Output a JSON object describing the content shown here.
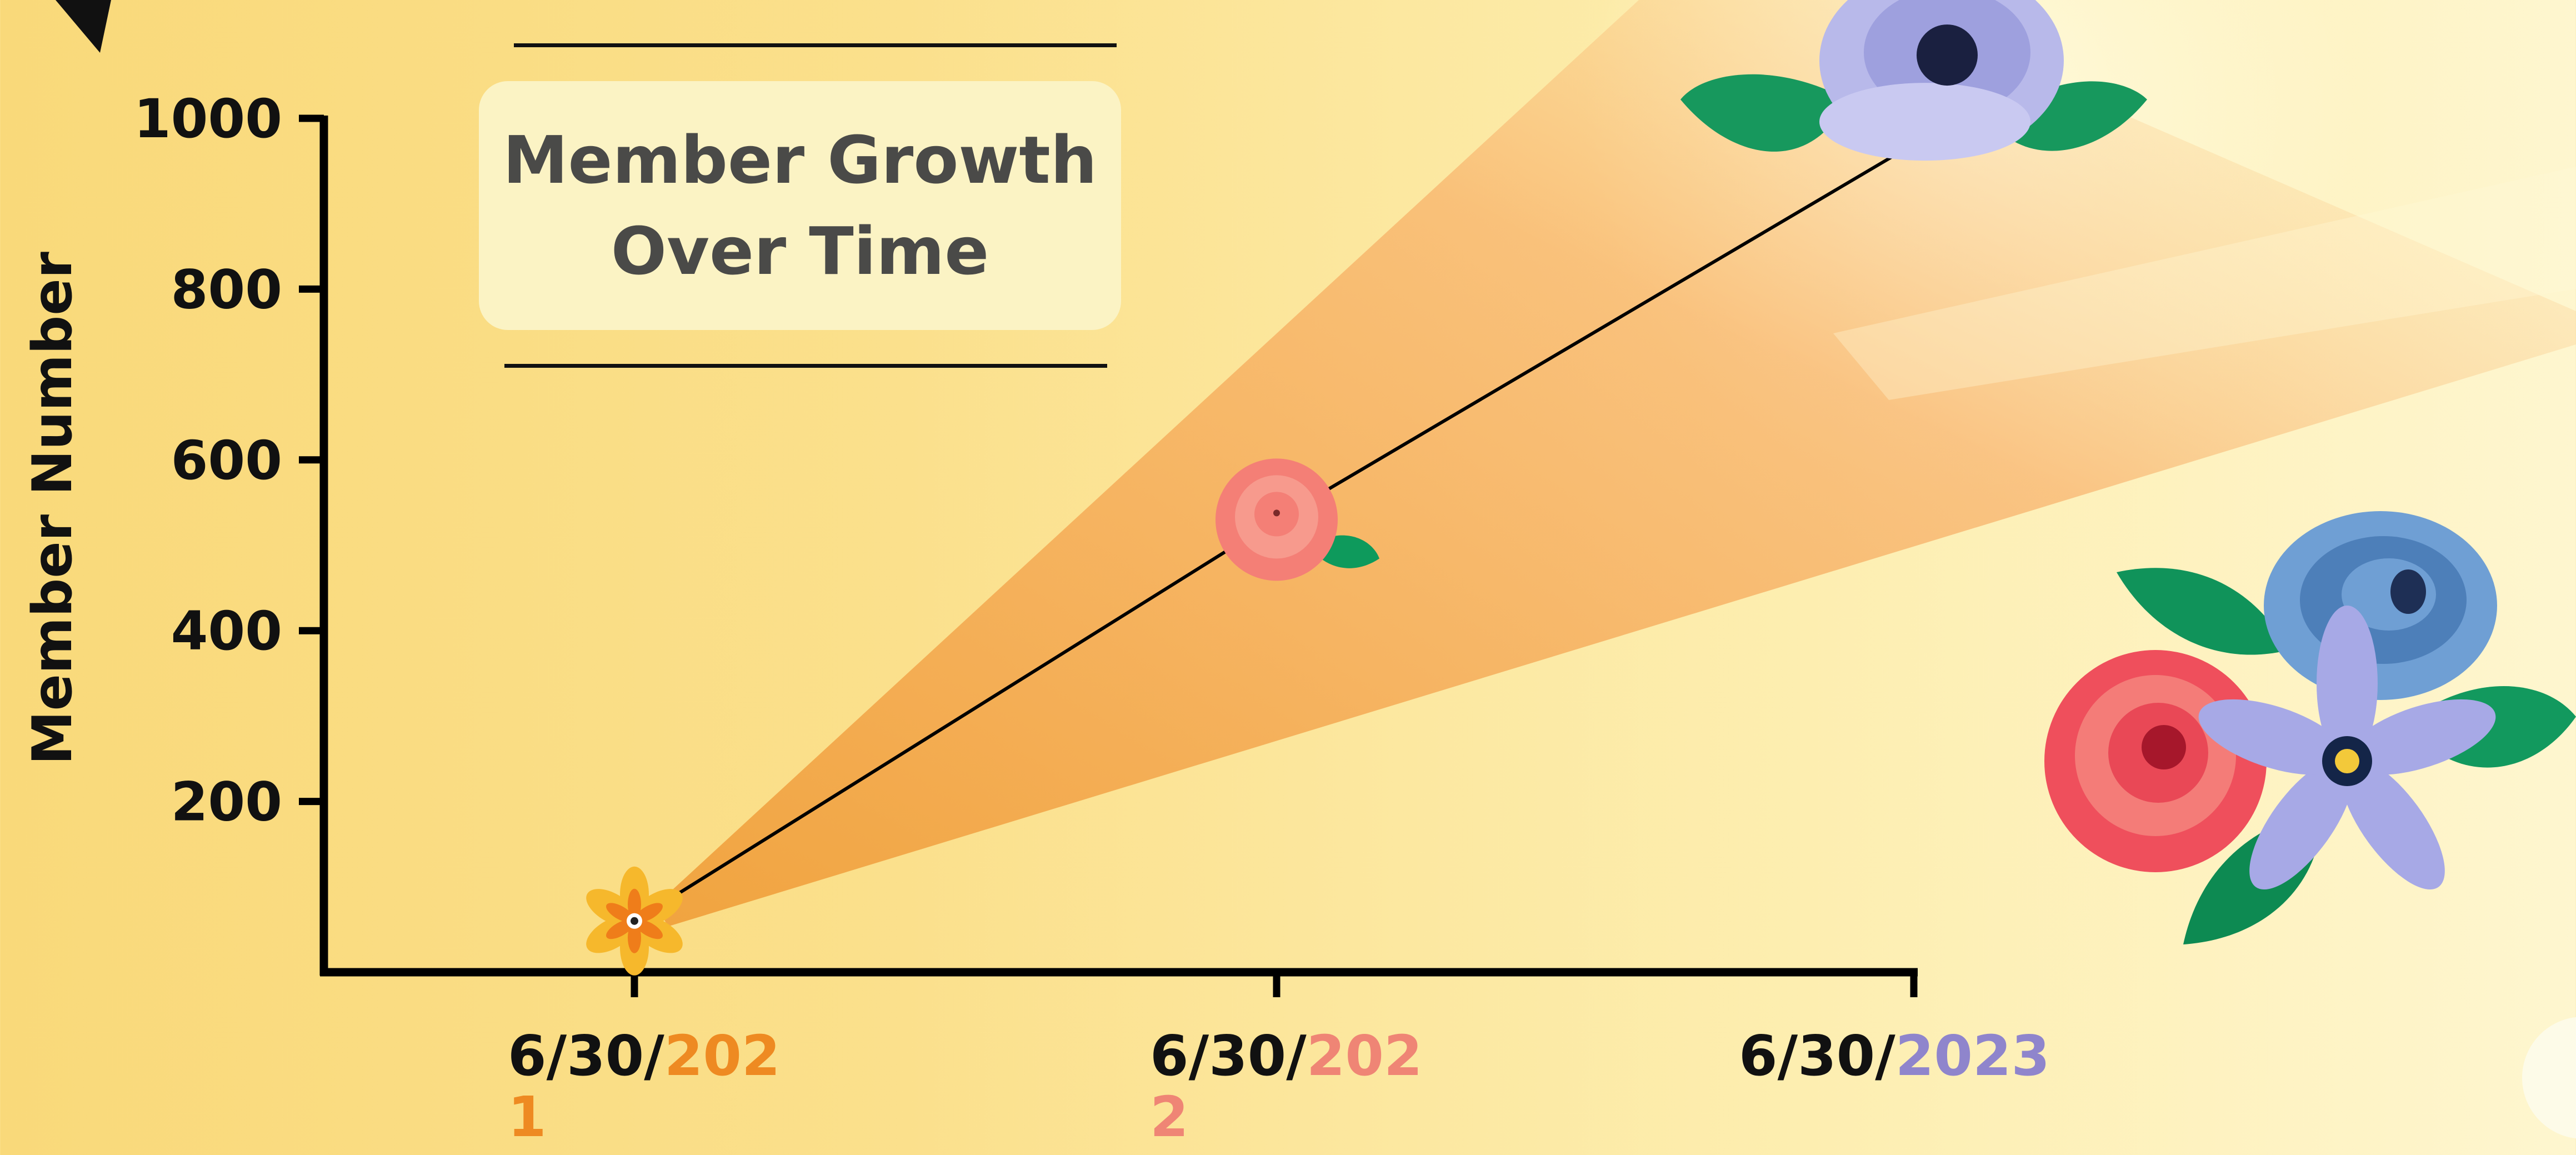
{
  "chart_data": {
    "type": "line",
    "title": "Member Growth Over Time",
    "ylabel": "Member Number",
    "xlabel": "",
    "ylim": [
      0,
      1000
    ],
    "yticks": [
      200,
      400,
      600,
      800,
      1000
    ],
    "categories": [
      {
        "prefix": "6/30/",
        "year": "2021",
        "year_color": "#ee8a22"
      },
      {
        "prefix": "6/30/",
        "year": "2022",
        "year_color": "#ef8575"
      },
      {
        "prefix": "6/30/",
        "year": "2023",
        "year_color": "#8f85cc"
      }
    ],
    "series": [
      {
        "values": [
          60,
          530,
          970
        ]
      }
    ],
    "markers": [
      "flower-icon",
      "rose-icon",
      "anemone-icon"
    ],
    "grid": false
  },
  "colors": {
    "axis": "#000000",
    "line": "#000000",
    "beam": "#f0a13c",
    "tick_label": "#111111"
  },
  "decorations": {
    "bouquet": "bouquet-icon"
  }
}
